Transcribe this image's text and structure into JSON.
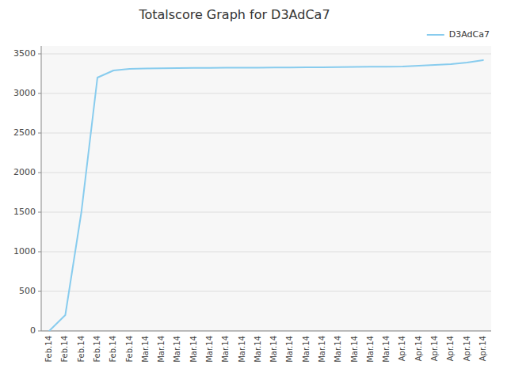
{
  "chart_data": {
    "type": "line",
    "title": "Totalscore Graph for D3AdCa7",
    "categories": [
      "Feb.14",
      "Feb.14",
      "Feb.14",
      "Feb.14",
      "Feb.14",
      "Feb.14",
      "Mar.14",
      "Mar.14",
      "Mar.14",
      "Mar.14",
      "Mar.14",
      "Mar.14",
      "Mar.14",
      "Mar.14",
      "Mar.14",
      "Mar.14",
      "Mar.14",
      "Mar.14",
      "Mar.14",
      "Mar.14",
      "Mar.14",
      "Mar.14",
      "Apr.14",
      "Apr.14",
      "Apr.14",
      "Apr.14",
      "Apr.14",
      "Apr.14"
    ],
    "series": [
      {
        "name": "D3AdCa7",
        "color": "#88ccee",
        "values": [
          0,
          200,
          1500,
          3200,
          3290,
          3310,
          3315,
          3318,
          3320,
          3322,
          3323,
          3325,
          3325,
          3326,
          3327,
          3328,
          3330,
          3330,
          3332,
          3335,
          3337,
          3338,
          3340,
          3350,
          3360,
          3370,
          3390,
          3420
        ]
      }
    ],
    "ylim": [
      0,
      3600
    ],
    "yticks": [
      0,
      500,
      1000,
      1500,
      2000,
      2500,
      3000,
      3500
    ],
    "grid": true,
    "legend": "upper right"
  }
}
